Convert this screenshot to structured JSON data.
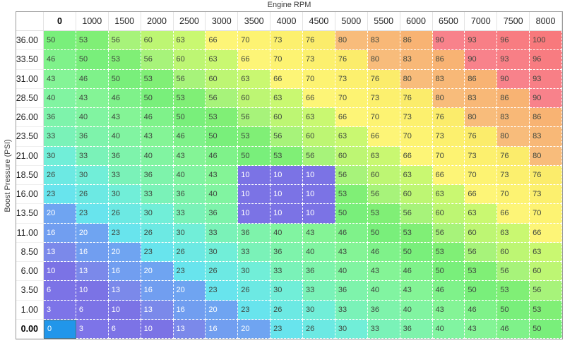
{
  "axes": {
    "x_title": "Engine RPM",
    "y_title": "Boost Pressure (PSI)"
  },
  "table": {
    "col_headers": [
      "0",
      "1000",
      "1500",
      "2000",
      "2500",
      "3000",
      "3500",
      "4000",
      "4500",
      "5000",
      "5500",
      "6000",
      "6500",
      "7000",
      "7500",
      "8000"
    ],
    "row_headers": [
      "36.00",
      "33.50",
      "31.00",
      "28.50",
      "26.00",
      "23.50",
      "21.00",
      "18.50",
      "16.00",
      "13.50",
      "11.00",
      "8.50",
      "6.00",
      "3.50",
      "1.00",
      "0.00"
    ],
    "values": [
      [
        50,
        53,
        56,
        60,
        63,
        66,
        70,
        73,
        76,
        80,
        83,
        86,
        90,
        93,
        96,
        100
      ],
      [
        46,
        50,
        53,
        56,
        60,
        63,
        66,
        70,
        73,
        76,
        80,
        83,
        86,
        90,
        93,
        96
      ],
      [
        43,
        46,
        50,
        53,
        56,
        60,
        63,
        66,
        70,
        73,
        76,
        80,
        83,
        86,
        90,
        93
      ],
      [
        40,
        43,
        46,
        50,
        53,
        56,
        60,
        63,
        66,
        70,
        73,
        76,
        80,
        83,
        86,
        90
      ],
      [
        36,
        40,
        43,
        46,
        50,
        53,
        56,
        60,
        63,
        66,
        70,
        73,
        76,
        80,
        83,
        86
      ],
      [
        33,
        36,
        40,
        43,
        46,
        50,
        53,
        56,
        60,
        63,
        66,
        70,
        73,
        76,
        80,
        83
      ],
      [
        30,
        33,
        36,
        40,
        43,
        46,
        50,
        53,
        56,
        60,
        63,
        66,
        70,
        73,
        76,
        80
      ],
      [
        26,
        30,
        33,
        36,
        40,
        43,
        10,
        10,
        10,
        56,
        60,
        63,
        66,
        70,
        73,
        76
      ],
      [
        23,
        26,
        30,
        33,
        36,
        40,
        10,
        10,
        10,
        53,
        56,
        60,
        63,
        66,
        70,
        73
      ],
      [
        20,
        23,
        26,
        30,
        33,
        36,
        10,
        10,
        10,
        50,
        53,
        56,
        60,
        63,
        66,
        70
      ],
      [
        16,
        20,
        23,
        26,
        30,
        33,
        36,
        40,
        43,
        46,
        50,
        53,
        56,
        60,
        63,
        66
      ],
      [
        13,
        16,
        20,
        23,
        26,
        30,
        33,
        36,
        40,
        43,
        46,
        50,
        53,
        56,
        60,
        63
      ],
      [
        10,
        13,
        16,
        20,
        23,
        26,
        30,
        33,
        36,
        40,
        43,
        46,
        50,
        53,
        56,
        60
      ],
      [
        6,
        10,
        13,
        16,
        20,
        23,
        26,
        30,
        33,
        36,
        40,
        43,
        46,
        50,
        53,
        56
      ],
      [
        3,
        6,
        10,
        13,
        16,
        20,
        23,
        26,
        30,
        33,
        36,
        40,
        43,
        46,
        50,
        53
      ],
      [
        0,
        3,
        6,
        10,
        13,
        16,
        20,
        23,
        26,
        30,
        33,
        36,
        40,
        43,
        46,
        50
      ]
    ]
  },
  "selected": {
    "row": 15,
    "col": 0,
    "row_header": "0.00",
    "col_header": "0",
    "value": 0
  },
  "style": {
    "selected_bg": "#2196ea",
    "selected_border": "#4a7389",
    "light_text_max_value": 20,
    "value_colors": {
      "0": "#7d71e8",
      "3": "#7d74e8",
      "6": "#7c73e6",
      "10": "#7b73e5",
      "13": "#7b89ea",
      "16": "#719ef0",
      "20": "#6fa4f1",
      "23": "#68e4ed",
      "26": "#6ce9e3",
      "30": "#71eed8",
      "33": "#7af2b8",
      "36": "#7ef3ab",
      "40": "#81f4a1",
      "43": "#84f496",
      "46": "#7ff28a",
      "50": "#79ef7b",
      "53": "#80ef76",
      "56": "#a7f37a",
      "60": "#bdf673",
      "63": "#c9f871",
      "66": "#fdf577",
      "70": "#fdf372",
      "73": "#fcf06e",
      "76": "#fbec6b",
      "80": "#f8bc7b",
      "83": "#f8b877",
      "86": "#f8b373",
      "90": "#f8828b",
      "93": "#f87f86",
      "96": "#f87c81",
      "100": "#f8797c"
    }
  },
  "chart_data": {
    "type": "heatmap",
    "xlabel": "Engine RPM",
    "ylabel": "Boost Pressure (PSI)",
    "x": [
      0,
      1000,
      1500,
      2000,
      2500,
      3000,
      3500,
      4000,
      4500,
      5000,
      5500,
      6000,
      6500,
      7000,
      7500,
      8000
    ],
    "y": [
      36.0,
      33.5,
      31.0,
      28.5,
      26.0,
      23.5,
      21.0,
      18.5,
      16.0,
      13.5,
      11.0,
      8.5,
      6.0,
      3.5,
      1.0,
      0.0
    ],
    "values": [
      [
        50,
        53,
        56,
        60,
        63,
        66,
        70,
        73,
        76,
        80,
        83,
        86,
        90,
        93,
        96,
        100
      ],
      [
        46,
        50,
        53,
        56,
        60,
        63,
        66,
        70,
        73,
        76,
        80,
        83,
        86,
        90,
        93,
        96
      ],
      [
        43,
        46,
        50,
        53,
        56,
        60,
        63,
        66,
        70,
        73,
        76,
        80,
        83,
        86,
        90,
        93
      ],
      [
        40,
        43,
        46,
        50,
        53,
        56,
        60,
        63,
        66,
        70,
        73,
        76,
        80,
        83,
        86,
        90
      ],
      [
        36,
        40,
        43,
        46,
        50,
        53,
        56,
        60,
        63,
        66,
        70,
        73,
        76,
        80,
        83,
        86
      ],
      [
        33,
        36,
        40,
        43,
        46,
        50,
        53,
        56,
        60,
        63,
        66,
        70,
        73,
        76,
        80,
        83
      ],
      [
        30,
        33,
        36,
        40,
        43,
        46,
        50,
        53,
        56,
        60,
        63,
        66,
        70,
        73,
        76,
        80
      ],
      [
        26,
        30,
        33,
        36,
        40,
        43,
        10,
        10,
        10,
        56,
        60,
        63,
        66,
        70,
        73,
        76
      ],
      [
        23,
        26,
        30,
        33,
        36,
        40,
        10,
        10,
        10,
        53,
        56,
        60,
        63,
        66,
        70,
        73
      ],
      [
        20,
        23,
        26,
        30,
        33,
        36,
        10,
        10,
        10,
        50,
        53,
        56,
        60,
        63,
        66,
        70
      ],
      [
        16,
        20,
        23,
        26,
        30,
        33,
        36,
        40,
        43,
        46,
        50,
        53,
        56,
        60,
        63,
        66
      ],
      [
        13,
        16,
        20,
        23,
        26,
        30,
        33,
        36,
        40,
        43,
        46,
        50,
        53,
        56,
        60,
        63
      ],
      [
        10,
        13,
        16,
        20,
        23,
        26,
        30,
        33,
        36,
        40,
        43,
        46,
        50,
        53,
        56,
        60
      ],
      [
        6,
        10,
        13,
        16,
        20,
        23,
        26,
        30,
        33,
        36,
        40,
        43,
        46,
        50,
        53,
        56
      ],
      [
        3,
        6,
        10,
        13,
        16,
        20,
        23,
        26,
        30,
        33,
        36,
        40,
        43,
        46,
        50,
        53
      ],
      [
        0,
        3,
        6,
        10,
        13,
        16,
        20,
        23,
        26,
        30,
        33,
        36,
        40,
        43,
        46,
        50
      ]
    ]
  }
}
